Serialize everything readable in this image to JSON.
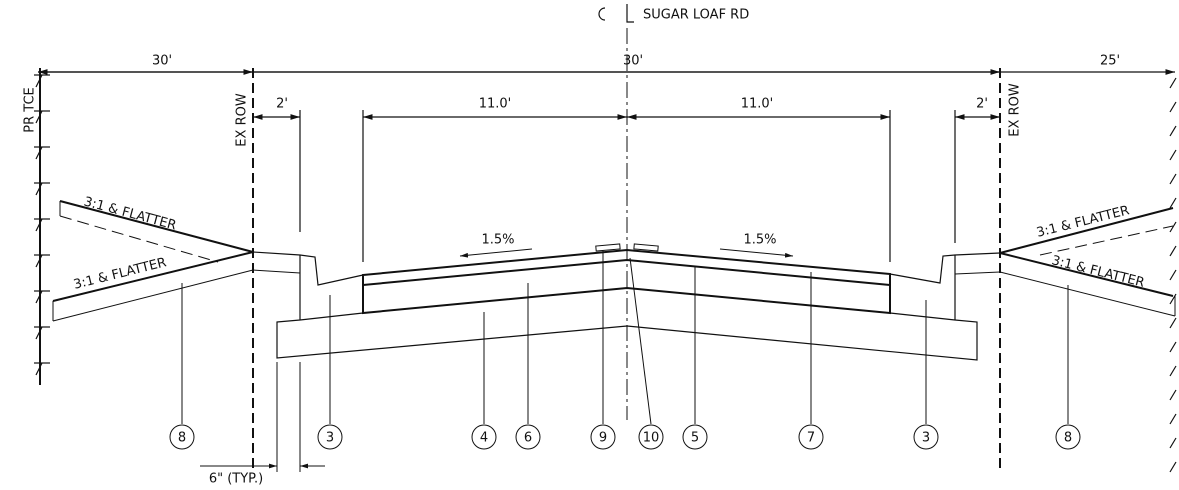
{
  "title": "SUGAR LOAF RD",
  "dimensions": {
    "left_offset": "30'",
    "half_row": "30'",
    "right_offset": "25'",
    "left_shoulder": "2'",
    "left_lane": "11.0'",
    "right_lane": "11.0'",
    "right_shoulder": "2'",
    "curb_width": "6\" (TYP.)"
  },
  "boundaries": {
    "left_tce": "PR TCE",
    "left_row": "EX ROW",
    "right_row": "EX ROW"
  },
  "slopes": {
    "left_upper": "3:1 & FLATTER",
    "left_lower": "3:1 & FLATTER",
    "right_upper": "3:1 & FLATTER",
    "right_lower": "3:1 & FLATTER"
  },
  "cross_slopes": {
    "left": "1.5%",
    "right": "1.5%"
  },
  "callouts": [
    "8",
    "3",
    "4",
    "6",
    "9",
    "10",
    "5",
    "7",
    "3",
    "8"
  ]
}
